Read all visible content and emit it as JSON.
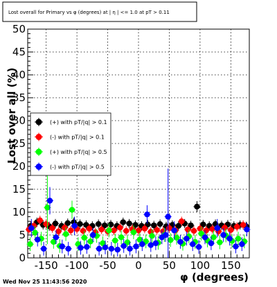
{
  "chart_data": {
    "type": "scatter",
    "title": "Lost overall for Primary vs φ (degrees) at | η | <= 1.0 at pT > 0.11",
    "xlabel": "φ (degrees)",
    "ylabel": "Lost over all (%)",
    "xlim": [
      -180,
      180
    ],
    "ylim": [
      0,
      50
    ],
    "x_ticks": [
      "-150",
      "-100",
      "-50",
      "0",
      "50",
      "100",
      "150"
    ],
    "y_ticks": [
      "0",
      "5",
      "10",
      "15",
      "20",
      "25",
      "30",
      "35",
      "40",
      "45",
      "50"
    ],
    "grid": true,
    "legend_position": "left-middle",
    "footer": "Wed Nov 25 11:43:56 2020",
    "series": [
      {
        "name": "(+) with pT/|q| > 0.1",
        "color": "#000000",
        "points": [
          {
            "x": -175,
            "y": 7.0,
            "err": 1.0
          },
          {
            "x": -165,
            "y": 7.8,
            "err": 1.0
          },
          {
            "x": -155,
            "y": 7.2,
            "err": 1.0
          },
          {
            "x": -145,
            "y": 6.9,
            "err": 1.0
          },
          {
            "x": -135,
            "y": 7.5,
            "err": 1.0
          },
          {
            "x": -125,
            "y": 7.0,
            "err": 1.0
          },
          {
            "x": -115,
            "y": 7.6,
            "err": 1.0
          },
          {
            "x": -105,
            "y": 7.8,
            "err": 1.0
          },
          {
            "x": -95,
            "y": 7.4,
            "err": 1.0
          },
          {
            "x": -85,
            "y": 7.2,
            "err": 1.0
          },
          {
            "x": -75,
            "y": 7.0,
            "err": 1.0
          },
          {
            "x": -65,
            "y": 7.4,
            "err": 1.0
          },
          {
            "x": -55,
            "y": 7.1,
            "err": 1.0
          },
          {
            "x": -45,
            "y": 7.3,
            "err": 1.0
          },
          {
            "x": -35,
            "y": 7.0,
            "err": 1.0
          },
          {
            "x": -25,
            "y": 7.8,
            "err": 1.0
          },
          {
            "x": -15,
            "y": 7.5,
            "err": 1.0
          },
          {
            "x": -5,
            "y": 7.2,
            "err": 1.0
          },
          {
            "x": 5,
            "y": 7.0,
            "err": 1.0
          },
          {
            "x": 15,
            "y": 7.3,
            "err": 1.0
          },
          {
            "x": 25,
            "y": 7.1,
            "err": 1.0
          },
          {
            "x": 35,
            "y": 7.4,
            "err": 1.0
          },
          {
            "x": 45,
            "y": 6.9,
            "err": 1.0
          },
          {
            "x": 55,
            "y": 7.2,
            "err": 1.0
          },
          {
            "x": 65,
            "y": 7.0,
            "err": 1.0
          },
          {
            "x": 75,
            "y": 7.5,
            "err": 1.0
          },
          {
            "x": 85,
            "y": 7.1,
            "err": 1.0
          },
          {
            "x": 95,
            "y": 11.2,
            "err": 1.2
          },
          {
            "x": 105,
            "y": 7.3,
            "err": 1.0
          },
          {
            "x": 115,
            "y": 7.0,
            "err": 1.0
          },
          {
            "x": 125,
            "y": 7.4,
            "err": 1.0
          },
          {
            "x": 135,
            "y": 7.1,
            "err": 1.0
          },
          {
            "x": 145,
            "y": 7.3,
            "err": 1.0
          },
          {
            "x": 155,
            "y": 7.0,
            "err": 1.0
          },
          {
            "x": 165,
            "y": 7.2,
            "err": 1.0
          },
          {
            "x": 175,
            "y": 6.9,
            "err": 1.0
          }
        ]
      },
      {
        "name": "(-) with pT/|q| > 0.1",
        "color": "#ff0000",
        "points": [
          {
            "x": -178,
            "y": 6.2,
            "err": 1.0
          },
          {
            "x": -170,
            "y": 7.0,
            "err": 1.0
          },
          {
            "x": -160,
            "y": 8.2,
            "err": 1.0
          },
          {
            "x": -150,
            "y": 7.4,
            "err": 1.0
          },
          {
            "x": -140,
            "y": 6.5,
            "err": 1.0
          },
          {
            "x": -130,
            "y": 5.8,
            "err": 1.0
          },
          {
            "x": -120,
            "y": 6.6,
            "err": 1.0
          },
          {
            "x": -110,
            "y": 6.0,
            "err": 1.0
          },
          {
            "x": -100,
            "y": 6.3,
            "err": 1.0
          },
          {
            "x": -90,
            "y": 5.9,
            "err": 1.0
          },
          {
            "x": -80,
            "y": 6.4,
            "err": 1.0
          },
          {
            "x": -70,
            "y": 5.6,
            "err": 1.0
          },
          {
            "x": -60,
            "y": 6.2,
            "err": 1.0
          },
          {
            "x": -50,
            "y": 5.8,
            "err": 1.0
          },
          {
            "x": -40,
            "y": 6.0,
            "err": 1.0
          },
          {
            "x": -30,
            "y": 6.6,
            "err": 1.0
          },
          {
            "x": -20,
            "y": 5.9,
            "err": 1.0
          },
          {
            "x": -10,
            "y": 6.3,
            "err": 1.0
          },
          {
            "x": 0,
            "y": 6.0,
            "err": 1.0
          },
          {
            "x": 10,
            "y": 6.4,
            "err": 1.0
          },
          {
            "x": 20,
            "y": 5.7,
            "err": 1.0
          },
          {
            "x": 30,
            "y": 6.1,
            "err": 1.0
          },
          {
            "x": 40,
            "y": 5.8,
            "err": 1.0
          },
          {
            "x": 50,
            "y": 6.5,
            "err": 1.0
          },
          {
            "x": 60,
            "y": 6.0,
            "err": 1.0
          },
          {
            "x": 70,
            "y": 8.0,
            "err": 1.0
          },
          {
            "x": 80,
            "y": 6.2,
            "err": 1.0
          },
          {
            "x": 90,
            "y": 5.9,
            "err": 1.0
          },
          {
            "x": 100,
            "y": 6.4,
            "err": 1.0
          },
          {
            "x": 110,
            "y": 6.0,
            "err": 1.0
          },
          {
            "x": 120,
            "y": 6.3,
            "err": 1.0
          },
          {
            "x": 130,
            "y": 5.8,
            "err": 1.0
          },
          {
            "x": 140,
            "y": 6.6,
            "err": 1.0
          },
          {
            "x": 150,
            "y": 6.1,
            "err": 1.0
          },
          {
            "x": 160,
            "y": 6.8,
            "err": 1.0
          },
          {
            "x": 170,
            "y": 7.2,
            "err": 1.0
          }
        ]
      },
      {
        "name": "(+) with pT/|q| > 0.5",
        "color": "#00ff00",
        "points": [
          {
            "x": -176,
            "y": 3.0,
            "err": 1.5
          },
          {
            "x": -168,
            "y": 5.5,
            "err": 1.5
          },
          {
            "x": -158,
            "y": 4.2,
            "err": 1.5
          },
          {
            "x": -148,
            "y": 11.0,
            "err": 8.0
          },
          {
            "x": -138,
            "y": 3.5,
            "err": 1.5
          },
          {
            "x": -128,
            "y": 2.6,
            "err": 1.5
          },
          {
            "x": -118,
            "y": 5.2,
            "err": 1.5
          },
          {
            "x": -108,
            "y": 10.5,
            "err": 2.0
          },
          {
            "x": -98,
            "y": 3.0,
            "err": 1.5
          },
          {
            "x": -88,
            "y": 4.4,
            "err": 1.5
          },
          {
            "x": -78,
            "y": 3.6,
            "err": 1.5
          },
          {
            "x": -68,
            "y": 4.8,
            "err": 1.5
          },
          {
            "x": -58,
            "y": 3.2,
            "err": 1.5
          },
          {
            "x": -48,
            "y": 6.0,
            "err": 1.5
          },
          {
            "x": -38,
            "y": 3.8,
            "err": 1.5
          },
          {
            "x": -28,
            "y": 4.5,
            "err": 1.5
          },
          {
            "x": -18,
            "y": 3.4,
            "err": 1.5
          },
          {
            "x": -8,
            "y": 5.6,
            "err": 1.5
          },
          {
            "x": 2,
            "y": 4.0,
            "err": 1.5
          },
          {
            "x": 12,
            "y": 3.6,
            "err": 1.5
          },
          {
            "x": 22,
            "y": 4.8,
            "err": 1.5
          },
          {
            "x": 32,
            "y": 3.3,
            "err": 1.5
          },
          {
            "x": 42,
            "y": 5.0,
            "err": 1.5
          },
          {
            "x": 52,
            "y": 3.9,
            "err": 1.5
          },
          {
            "x": 62,
            "y": 4.4,
            "err": 1.5
          },
          {
            "x": 72,
            "y": 3.1,
            "err": 1.5
          },
          {
            "x": 82,
            "y": 4.7,
            "err": 1.5
          },
          {
            "x": 92,
            "y": 3.5,
            "err": 1.5
          },
          {
            "x": 102,
            "y": 5.3,
            "err": 1.5
          },
          {
            "x": 112,
            "y": 3.8,
            "err": 1.5
          },
          {
            "x": 122,
            "y": 4.5,
            "err": 1.5
          },
          {
            "x": 132,
            "y": 3.4,
            "err": 1.5
          },
          {
            "x": 142,
            "y": 4.9,
            "err": 1.5
          },
          {
            "x": 152,
            "y": 3.7,
            "err": 1.5
          },
          {
            "x": 162,
            "y": 4.2,
            "err": 1.5
          },
          {
            "x": 172,
            "y": 3.6,
            "err": 1.5
          }
        ]
      },
      {
        "name": "(-) with pT/|q| > 0.5",
        "color": "#0000ff",
        "points": [
          {
            "x": -174,
            "y": 6.5,
            "err": 2.0
          },
          {
            "x": -164,
            "y": 4.0,
            "err": 1.5
          },
          {
            "x": -154,
            "y": 2.0,
            "err": 1.5
          },
          {
            "x": -144,
            "y": 12.5,
            "err": 3.0
          },
          {
            "x": -134,
            "y": 4.5,
            "err": 1.5
          },
          {
            "x": -124,
            "y": 2.5,
            "err": 1.5
          },
          {
            "x": -114,
            "y": 2.0,
            "err": 1.5
          },
          {
            "x": -104,
            "y": 7.0,
            "err": 2.0
          },
          {
            "x": -94,
            "y": 2.2,
            "err": 1.5
          },
          {
            "x": -84,
            "y": 2.4,
            "err": 1.5
          },
          {
            "x": -74,
            "y": 5.0,
            "err": 1.5
          },
          {
            "x": -64,
            "y": 2.0,
            "err": 1.5
          },
          {
            "x": -54,
            "y": 2.3,
            "err": 1.5
          },
          {
            "x": -44,
            "y": 2.0,
            "err": 1.5
          },
          {
            "x": -34,
            "y": 1.8,
            "err": 1.5
          },
          {
            "x": -24,
            "y": 2.6,
            "err": 1.5
          },
          {
            "x": -14,
            "y": 2.0,
            "err": 1.5
          },
          {
            "x": -4,
            "y": 2.5,
            "err": 1.5
          },
          {
            "x": 6,
            "y": 3.0,
            "err": 1.5
          },
          {
            "x": 14,
            "y": 9.5,
            "err": 2.0
          },
          {
            "x": 20,
            "y": 2.8,
            "err": 1.5
          },
          {
            "x": 28,
            "y": 3.2,
            "err": 1.5
          },
          {
            "x": 38,
            "y": 4.5,
            "err": 1.5
          },
          {
            "x": 44,
            "y": 5.0,
            "err": 1.5
          },
          {
            "x": 48,
            "y": 9.0,
            "err": 10.5
          },
          {
            "x": 58,
            "y": 6.0,
            "err": 2.0
          },
          {
            "x": 68,
            "y": 3.5,
            "err": 1.5
          },
          {
            "x": 78,
            "y": 4.2,
            "err": 1.5
          },
          {
            "x": 88,
            "y": 3.0,
            "err": 1.5
          },
          {
            "x": 98,
            "y": 2.4,
            "err": 1.5
          },
          {
            "x": 108,
            "y": 4.5,
            "err": 1.5
          },
          {
            "x": 118,
            "y": 3.2,
            "err": 1.5
          },
          {
            "x": 128,
            "y": 6.5,
            "err": 2.0
          },
          {
            "x": 138,
            "y": 5.0,
            "err": 1.5
          },
          {
            "x": 148,
            "y": 4.2,
            "err": 1.5
          },
          {
            "x": 158,
            "y": 2.5,
            "err": 1.5
          },
          {
            "x": 168,
            "y": 3.0,
            "err": 1.5
          },
          {
            "x": 176,
            "y": 6.2,
            "err": 1.5
          }
        ]
      }
    ]
  }
}
